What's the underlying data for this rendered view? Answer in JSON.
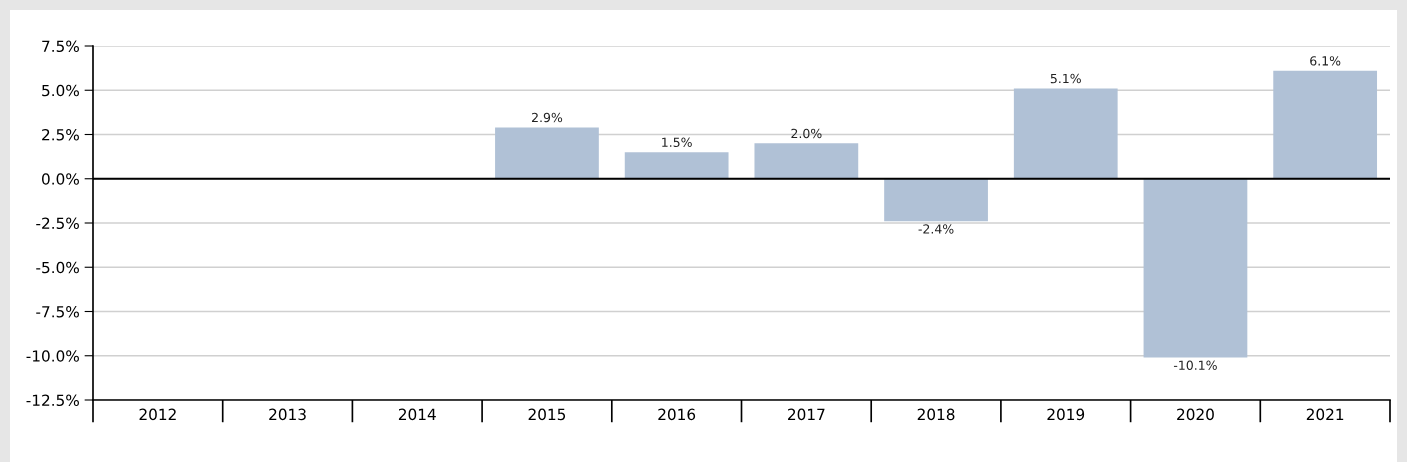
{
  "chart_data": {
    "type": "bar",
    "categories": [
      "2012",
      "2013",
      "2014",
      "2015",
      "2016",
      "2017",
      "2018",
      "2019",
      "2020",
      "2021"
    ],
    "series": [
      {
        "color": "#b0c1d6",
        "values": [
          null,
          null,
          null,
          2.9,
          1.5,
          2.0,
          -2.4,
          5.1,
          -10.1,
          6.1
        ],
        "value_labels": [
          null,
          null,
          null,
          "2.9%",
          "1.5%",
          "2.0%",
          "-2.4%",
          "5.1%",
          "-10.1%",
          "6.1%"
        ]
      }
    ],
    "ylim": [
      -12.5,
      7.5
    ],
    "yticks": [
      {
        "value": -12.5,
        "label": "-12.5%"
      },
      {
        "value": -10,
        "label": "-10.0%"
      },
      {
        "value": -7.5,
        "label": "-7.5%"
      },
      {
        "value": -5,
        "label": "-5.0%"
      },
      {
        "value": -2.5,
        "label": "-2.5%"
      },
      {
        "value": 0,
        "label": "0.0%"
      },
      {
        "value": 2.5,
        "label": "2.5%"
      },
      {
        "value": 5,
        "label": "5.0%"
      },
      {
        "value": 7.5,
        "label": "7.5%"
      }
    ],
    "grid": "y"
  }
}
